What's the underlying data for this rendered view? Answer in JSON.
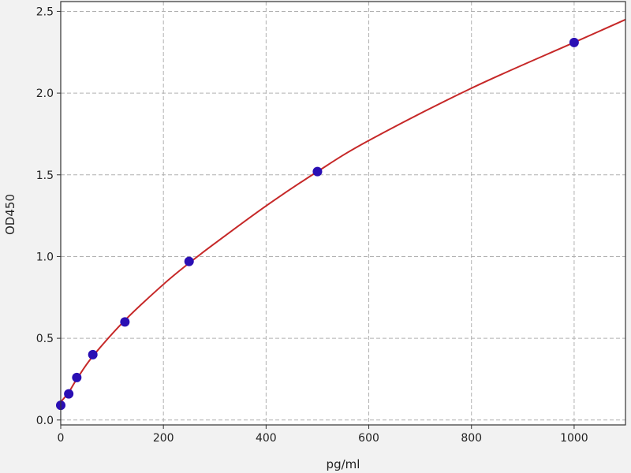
{
  "chart_data": {
    "type": "scatter",
    "xlabel": "pg/ml",
    "ylabel": "OD450",
    "xlim": [
      0,
      1100
    ],
    "ylim": [
      -0.03,
      2.56
    ],
    "xticks": [
      0,
      200,
      400,
      600,
      800,
      1000
    ],
    "yticks": [
      0.0,
      0.5,
      1.0,
      1.5,
      2.0,
      2.5
    ],
    "xtick_labels": [
      "0",
      "200",
      "400",
      "600",
      "800",
      "1000"
    ],
    "ytick_labels": [
      "0.0",
      "0.5",
      "1.0",
      "1.5",
      "2.0",
      "2.5"
    ],
    "grid": true,
    "series": [
      {
        "kind": "points",
        "color": "#2a0fb4",
        "x": [
          0,
          15.6,
          31.25,
          62.5,
          125,
          250,
          500,
          1000
        ],
        "y": [
          0.09,
          0.16,
          0.26,
          0.4,
          0.6,
          0.97,
          1.52,
          2.31
        ]
      },
      {
        "kind": "fit-curve",
        "color": "#c62828",
        "x": [
          0,
          15.6,
          31.25,
          62.5,
          125,
          200,
          250,
          300,
          400,
          500,
          600,
          800,
          1000,
          1100
        ],
        "y": [
          0.11,
          0.17,
          0.25,
          0.39,
          0.61,
          0.83,
          0.96,
          1.08,
          1.31,
          1.52,
          1.71,
          2.03,
          2.31,
          2.45
        ]
      }
    ]
  }
}
